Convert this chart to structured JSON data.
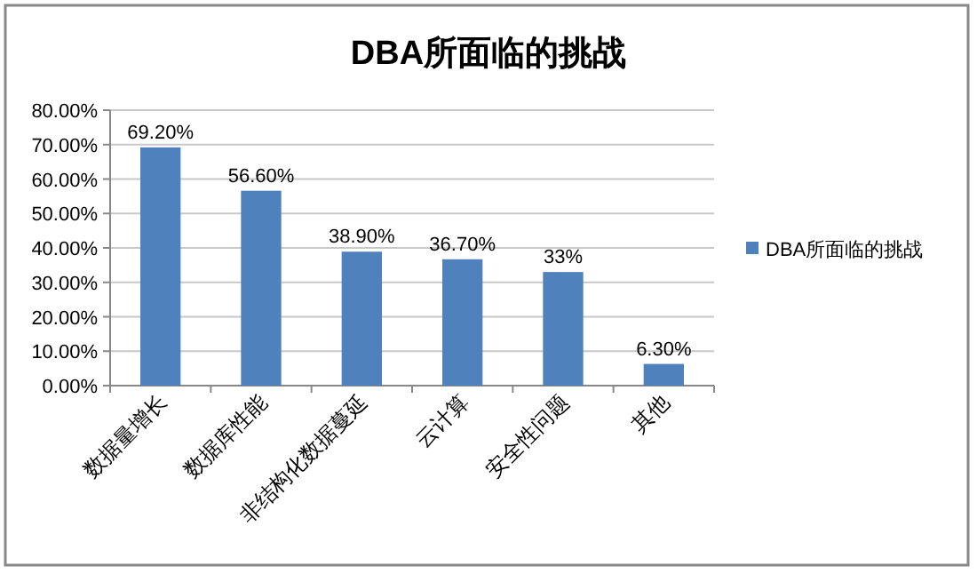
{
  "chart_data": {
    "type": "bar",
    "title": "DBA所面临的挑战",
    "categories": [
      "数据量增长",
      "数据库性能",
      "非结构化数据蔓延",
      "云计算",
      "安全性问题",
      "其他"
    ],
    "series": [
      {
        "name": "DBA所面临的挑战",
        "color": "#4f81bd",
        "values": [
          69.2,
          56.6,
          38.9,
          36.7,
          33,
          6.3
        ],
        "value_labels": [
          "69.20%",
          "56.60%",
          "38.90%",
          "36.70%",
          "33%",
          "6.30%"
        ]
      }
    ],
    "ylim": [
      0,
      80
    ],
    "yticks": [
      {
        "value": 0,
        "label": "0.00%"
      },
      {
        "value": 10,
        "label": "10.00%"
      },
      {
        "value": 20,
        "label": "20.00%"
      },
      {
        "value": 30,
        "label": "30.00%"
      },
      {
        "value": 40,
        "label": "40.00%"
      },
      {
        "value": 50,
        "label": "50.00%"
      },
      {
        "value": 60,
        "label": "60.00%"
      },
      {
        "value": 70,
        "label": "70.00%"
      },
      {
        "value": 80,
        "label": "80.00%"
      }
    ],
    "grid": "y",
    "legend": "right"
  }
}
